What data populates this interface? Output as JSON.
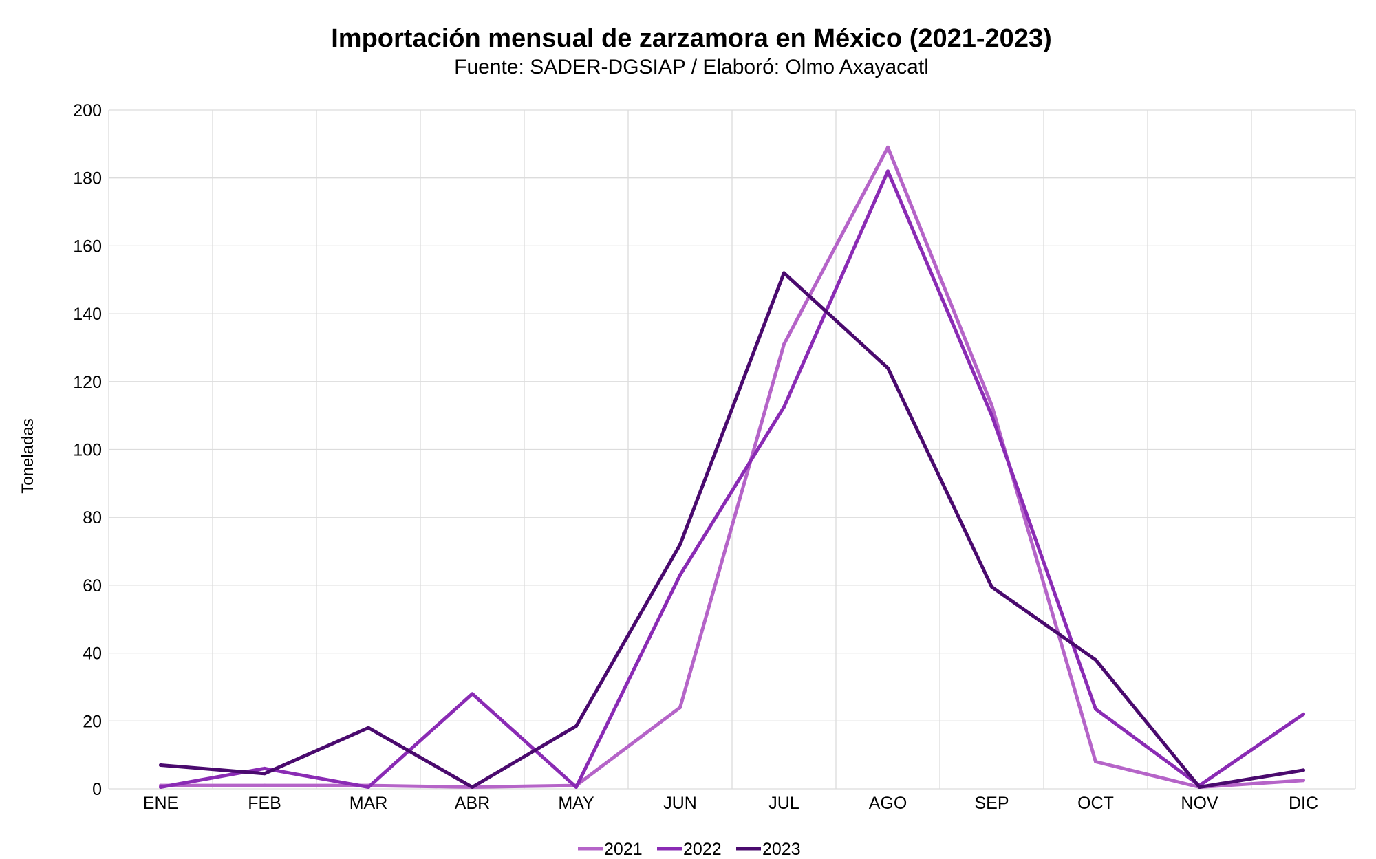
{
  "chart_data": {
    "type": "line",
    "title": "Importación mensual de zarzamora en México (2021-2023)",
    "subtitle": "Fuente: SADER-DGSIAP / Elaboró: Olmo Axayacatl",
    "xlabel": "",
    "ylabel": "Toneladas",
    "ylim": [
      0,
      200
    ],
    "yticks": [
      0,
      20,
      40,
      60,
      80,
      100,
      120,
      140,
      160,
      180,
      200
    ],
    "grid": true,
    "legend": "bottom",
    "categories": [
      "ENE",
      "FEB",
      "MAR",
      "ABR",
      "MAY",
      "JUN",
      "JUL",
      "AGO",
      "SEP",
      "OCT",
      "NOV",
      "DIC"
    ],
    "series": [
      {
        "name": "2021",
        "color": "#b564c8",
        "values": [
          1,
          1,
          1,
          0.5,
          1,
          24,
          131,
          189,
          113,
          8,
          0.5,
          2.5
        ]
      },
      {
        "name": "2022",
        "color": "#8a2bb4",
        "values": [
          0.5,
          6,
          0.5,
          28,
          0.5,
          63,
          112.5,
          182,
          110,
          23.5,
          1,
          22
        ]
      },
      {
        "name": "2023",
        "color": "#4a0a6e",
        "values": [
          7,
          4.5,
          18,
          0.5,
          18.5,
          72,
          152,
          124,
          59.5,
          38,
          0.5,
          5.5
        ]
      }
    ]
  }
}
